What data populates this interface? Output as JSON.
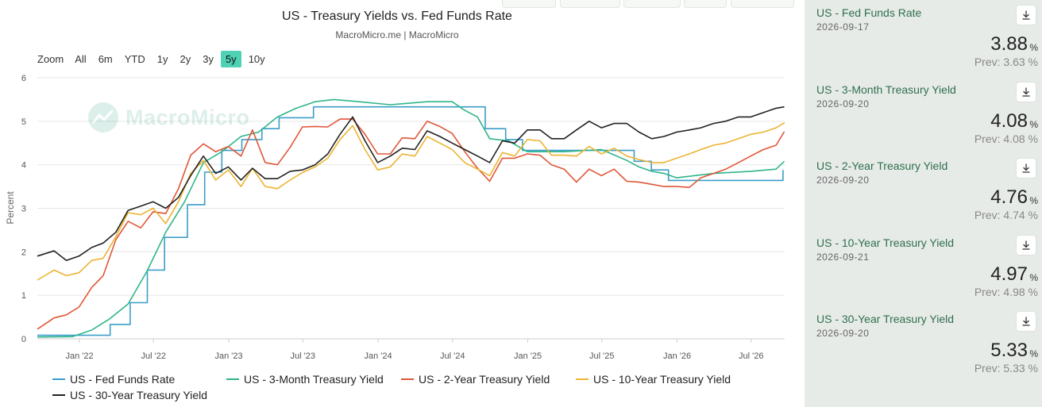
{
  "chart_data": {
    "type": "line",
    "title": "US - Treasury Yields vs. Fed Funds Rate",
    "subtitle": "MacroMicro.me | MacroMicro",
    "ylabel": "Percent",
    "xlabel": "",
    "ylim": [
      0,
      6
    ],
    "yticks": [
      0,
      1,
      2,
      3,
      4,
      5,
      6
    ],
    "xlim": [
      "2021-09-20",
      "2026-09-21"
    ],
    "xticks": [
      {
        "date": "2022-01-01",
        "label": "Jan '22"
      },
      {
        "date": "2022-07-01",
        "label": "Jul '22"
      },
      {
        "date": "2023-01-01",
        "label": "Jan '23"
      },
      {
        "date": "2023-07-01",
        "label": "Jul '23"
      },
      {
        "date": "2024-01-01",
        "label": "Jan '24"
      },
      {
        "date": "2024-07-01",
        "label": "Jul '24"
      },
      {
        "date": "2025-01-01",
        "label": "Jan '25"
      },
      {
        "date": "2025-07-01",
        "label": "Jul '25"
      },
      {
        "date": "2026-01-01",
        "label": "Jan '26"
      },
      {
        "date": "2026-07-01",
        "label": "Jul '26"
      }
    ],
    "grid": true,
    "legend": "bottom",
    "series": [
      {
        "name": "US - Fed Funds Rate",
        "color": "#3a9ec9",
        "step": true,
        "points": [
          [
            "2021-09-20",
            0.08
          ],
          [
            "2022-03-17",
            0.33
          ],
          [
            "2022-05-05",
            0.83
          ],
          [
            "2022-06-16",
            1.58
          ],
          [
            "2022-07-28",
            2.33
          ],
          [
            "2022-09-22",
            3.08
          ],
          [
            "2022-11-03",
            3.83
          ],
          [
            "2022-12-15",
            4.33
          ],
          [
            "2023-02-02",
            4.58
          ],
          [
            "2023-03-23",
            4.83
          ],
          [
            "2023-05-04",
            5.08
          ],
          [
            "2023-07-27",
            5.33
          ],
          [
            "2024-09-19",
            4.83
          ],
          [
            "2024-11-08",
            4.58
          ],
          [
            "2024-12-19",
            4.33
          ],
          [
            "2025-09-18",
            4.08
          ],
          [
            "2025-10-30",
            3.88
          ],
          [
            "2025-12-11",
            3.64
          ],
          [
            "2026-09-15",
            3.64
          ],
          [
            "2026-09-17",
            3.88
          ]
        ]
      },
      {
        "name": "US - 3-Month Treasury Yield",
        "color": "#2fb58a",
        "points": [
          [
            "2021-09-20",
            0.04
          ],
          [
            "2021-12-15",
            0.05
          ],
          [
            "2022-01-31",
            0.2
          ],
          [
            "2022-03-15",
            0.45
          ],
          [
            "2022-04-30",
            0.8
          ],
          [
            "2022-06-15",
            1.55
          ],
          [
            "2022-07-31",
            2.45
          ],
          [
            "2022-09-15",
            3.15
          ],
          [
            "2022-10-31",
            4.05
          ],
          [
            "2022-12-15",
            4.3
          ],
          [
            "2023-01-31",
            4.65
          ],
          [
            "2023-03-15",
            4.75
          ],
          [
            "2023-04-30",
            5.1
          ],
          [
            "2023-06-15",
            5.3
          ],
          [
            "2023-07-31",
            5.45
          ],
          [
            "2023-09-15",
            5.5
          ],
          [
            "2023-11-15",
            5.45
          ],
          [
            "2024-01-31",
            5.38
          ],
          [
            "2024-04-30",
            5.45
          ],
          [
            "2024-06-30",
            5.45
          ],
          [
            "2024-07-31",
            5.25
          ],
          [
            "2024-08-31",
            5.1
          ],
          [
            "2024-09-30",
            4.6
          ],
          [
            "2024-11-15",
            4.55
          ],
          [
            "2024-12-31",
            4.3
          ],
          [
            "2025-03-31",
            4.3
          ],
          [
            "2025-06-30",
            4.35
          ],
          [
            "2025-08-31",
            4.1
          ],
          [
            "2025-09-30",
            3.95
          ],
          [
            "2025-10-31",
            3.85
          ],
          [
            "2025-11-30",
            3.8
          ],
          [
            "2025-12-31",
            3.7
          ],
          [
            "2026-03-31",
            3.8
          ],
          [
            "2026-06-30",
            3.85
          ],
          [
            "2026-08-31",
            3.9
          ],
          [
            "2026-09-20",
            4.08
          ]
        ]
      },
      {
        "name": "US - 2-Year Treasury Yield",
        "color": "#e05638",
        "points": [
          [
            "2021-09-20",
            0.22
          ],
          [
            "2021-10-31",
            0.48
          ],
          [
            "2021-11-30",
            0.55
          ],
          [
            "2021-12-31",
            0.73
          ],
          [
            "2022-01-31",
            1.18
          ],
          [
            "2022-02-28",
            1.45
          ],
          [
            "2022-03-31",
            2.28
          ],
          [
            "2022-04-30",
            2.7
          ],
          [
            "2022-05-31",
            2.55
          ],
          [
            "2022-06-30",
            2.92
          ],
          [
            "2022-07-31",
            2.88
          ],
          [
            "2022-08-31",
            3.45
          ],
          [
            "2022-09-30",
            4.22
          ],
          [
            "2022-10-31",
            4.48
          ],
          [
            "2022-11-30",
            4.3
          ],
          [
            "2022-12-31",
            4.42
          ],
          [
            "2023-01-31",
            4.2
          ],
          [
            "2023-02-28",
            4.8
          ],
          [
            "2023-03-31",
            4.05
          ],
          [
            "2023-04-30",
            4.0
          ],
          [
            "2023-05-31",
            4.4
          ],
          [
            "2023-06-30",
            4.87
          ],
          [
            "2023-07-31",
            4.88
          ],
          [
            "2023-08-31",
            4.87
          ],
          [
            "2023-09-30",
            5.05
          ],
          [
            "2023-10-31",
            5.05
          ],
          [
            "2023-11-30",
            4.7
          ],
          [
            "2023-12-31",
            4.25
          ],
          [
            "2024-01-31",
            4.25
          ],
          [
            "2024-02-29",
            4.62
          ],
          [
            "2024-03-31",
            4.6
          ],
          [
            "2024-04-30",
            5.0
          ],
          [
            "2024-05-31",
            4.88
          ],
          [
            "2024-06-30",
            4.72
          ],
          [
            "2024-07-31",
            4.3
          ],
          [
            "2024-08-31",
            3.92
          ],
          [
            "2024-09-30",
            3.62
          ],
          [
            "2024-10-31",
            4.15
          ],
          [
            "2024-11-30",
            4.15
          ],
          [
            "2024-12-31",
            4.25
          ],
          [
            "2025-01-31",
            4.22
          ],
          [
            "2025-02-28",
            4.0
          ],
          [
            "2025-03-31",
            3.9
          ],
          [
            "2025-04-30",
            3.6
          ],
          [
            "2025-05-31",
            3.9
          ],
          [
            "2025-06-30",
            3.75
          ],
          [
            "2025-07-31",
            3.9
          ],
          [
            "2025-08-31",
            3.62
          ],
          [
            "2025-09-30",
            3.6
          ],
          [
            "2025-10-31",
            3.55
          ],
          [
            "2025-11-30",
            3.5
          ],
          [
            "2025-12-31",
            3.5
          ],
          [
            "2026-01-31",
            3.48
          ],
          [
            "2026-02-28",
            3.7
          ],
          [
            "2026-03-31",
            3.8
          ],
          [
            "2026-04-30",
            3.9
          ],
          [
            "2026-05-31",
            4.05
          ],
          [
            "2026-06-30",
            4.2
          ],
          [
            "2026-07-31",
            4.35
          ],
          [
            "2026-08-31",
            4.45
          ],
          [
            "2026-09-20",
            4.76
          ]
        ]
      },
      {
        "name": "US - 10-Year Treasury Yield",
        "color": "#ecb431",
        "points": [
          [
            "2021-09-20",
            1.35
          ],
          [
            "2021-10-31",
            1.58
          ],
          [
            "2021-11-30",
            1.45
          ],
          [
            "2021-12-31",
            1.52
          ],
          [
            "2022-01-31",
            1.8
          ],
          [
            "2022-02-28",
            1.85
          ],
          [
            "2022-03-31",
            2.35
          ],
          [
            "2022-04-30",
            2.9
          ],
          [
            "2022-05-31",
            2.85
          ],
          [
            "2022-06-30",
            3.0
          ],
          [
            "2022-07-31",
            2.65
          ],
          [
            "2022-08-31",
            3.15
          ],
          [
            "2022-09-30",
            3.8
          ],
          [
            "2022-10-31",
            4.1
          ],
          [
            "2022-11-30",
            3.65
          ],
          [
            "2022-12-31",
            3.88
          ],
          [
            "2023-01-31",
            3.5
          ],
          [
            "2023-02-28",
            3.92
          ],
          [
            "2023-03-31",
            3.5
          ],
          [
            "2023-04-30",
            3.45
          ],
          [
            "2023-05-31",
            3.65
          ],
          [
            "2023-06-30",
            3.82
          ],
          [
            "2023-07-31",
            3.95
          ],
          [
            "2023-08-31",
            4.15
          ],
          [
            "2023-09-30",
            4.58
          ],
          [
            "2023-10-31",
            4.9
          ],
          [
            "2023-11-30",
            4.35
          ],
          [
            "2023-12-31",
            3.88
          ],
          [
            "2024-01-31",
            3.95
          ],
          [
            "2024-02-29",
            4.25
          ],
          [
            "2024-03-31",
            4.2
          ],
          [
            "2024-04-30",
            4.65
          ],
          [
            "2024-05-31",
            4.5
          ],
          [
            "2024-06-30",
            4.35
          ],
          [
            "2024-07-31",
            4.05
          ],
          [
            "2024-08-31",
            3.9
          ],
          [
            "2024-09-30",
            3.75
          ],
          [
            "2024-10-31",
            4.28
          ],
          [
            "2024-11-30",
            4.2
          ],
          [
            "2024-12-31",
            4.58
          ],
          [
            "2025-01-31",
            4.55
          ],
          [
            "2025-02-28",
            4.22
          ],
          [
            "2025-03-31",
            4.22
          ],
          [
            "2025-04-30",
            4.2
          ],
          [
            "2025-05-31",
            4.42
          ],
          [
            "2025-06-30",
            4.25
          ],
          [
            "2025-07-31",
            4.38
          ],
          [
            "2025-08-31",
            4.2
          ],
          [
            "2025-09-30",
            4.12
          ],
          [
            "2025-10-31",
            4.05
          ],
          [
            "2025-11-30",
            4.05
          ],
          [
            "2025-12-31",
            4.15
          ],
          [
            "2026-01-31",
            4.25
          ],
          [
            "2026-02-28",
            4.35
          ],
          [
            "2026-03-31",
            4.45
          ],
          [
            "2026-04-30",
            4.5
          ],
          [
            "2026-05-31",
            4.6
          ],
          [
            "2026-06-30",
            4.7
          ],
          [
            "2026-07-31",
            4.75
          ],
          [
            "2026-08-31",
            4.85
          ],
          [
            "2026-09-21",
            4.97
          ]
        ]
      },
      {
        "name": "US - 30-Year Treasury Yield",
        "color": "#222222",
        "points": [
          [
            "2021-09-20",
            1.9
          ],
          [
            "2021-10-31",
            2.02
          ],
          [
            "2021-11-30",
            1.8
          ],
          [
            "2021-12-31",
            1.9
          ],
          [
            "2022-01-31",
            2.1
          ],
          [
            "2022-02-28",
            2.2
          ],
          [
            "2022-03-31",
            2.45
          ],
          [
            "2022-04-30",
            2.95
          ],
          [
            "2022-05-31",
            3.05
          ],
          [
            "2022-06-30",
            3.15
          ],
          [
            "2022-07-31",
            3.0
          ],
          [
            "2022-08-31",
            3.25
          ],
          [
            "2022-09-30",
            3.75
          ],
          [
            "2022-10-31",
            4.2
          ],
          [
            "2022-11-30",
            3.8
          ],
          [
            "2022-12-31",
            3.95
          ],
          [
            "2023-01-31",
            3.65
          ],
          [
            "2023-02-28",
            3.92
          ],
          [
            "2023-03-31",
            3.68
          ],
          [
            "2023-04-30",
            3.68
          ],
          [
            "2023-05-31",
            3.85
          ],
          [
            "2023-06-30",
            3.88
          ],
          [
            "2023-07-31",
            4.0
          ],
          [
            "2023-08-31",
            4.25
          ],
          [
            "2023-09-30",
            4.7
          ],
          [
            "2023-10-31",
            5.1
          ],
          [
            "2023-11-30",
            4.55
          ],
          [
            "2023-12-31",
            4.05
          ],
          [
            "2024-01-31",
            4.2
          ],
          [
            "2024-02-29",
            4.38
          ],
          [
            "2024-03-31",
            4.35
          ],
          [
            "2024-04-30",
            4.78
          ],
          [
            "2024-05-31",
            4.65
          ],
          [
            "2024-06-30",
            4.5
          ],
          [
            "2024-07-31",
            4.35
          ],
          [
            "2024-08-31",
            4.2
          ],
          [
            "2024-09-30",
            4.05
          ],
          [
            "2024-10-31",
            4.55
          ],
          [
            "2024-11-30",
            4.5
          ],
          [
            "2024-12-31",
            4.8
          ],
          [
            "2025-01-31",
            4.8
          ],
          [
            "2025-02-28",
            4.6
          ],
          [
            "2025-03-31",
            4.6
          ],
          [
            "2025-04-30",
            4.8
          ],
          [
            "2025-05-31",
            5.0
          ],
          [
            "2025-06-30",
            4.85
          ],
          [
            "2025-07-31",
            4.95
          ],
          [
            "2025-08-31",
            4.95
          ],
          [
            "2025-09-30",
            4.75
          ],
          [
            "2025-10-31",
            4.6
          ],
          [
            "2025-11-30",
            4.65
          ],
          [
            "2025-12-31",
            4.75
          ],
          [
            "2026-01-31",
            4.8
          ],
          [
            "2026-02-28",
            4.85
          ],
          [
            "2026-03-31",
            4.95
          ],
          [
            "2026-04-30",
            5.0
          ],
          [
            "2026-05-31",
            5.1
          ],
          [
            "2026-06-30",
            5.1
          ],
          [
            "2026-07-31",
            5.2
          ],
          [
            "2026-08-31",
            5.3
          ],
          [
            "2026-09-20",
            5.33
          ]
        ]
      }
    ]
  },
  "zoom": {
    "label": "Zoom",
    "options": [
      "All",
      "6m",
      "YTD",
      "1y",
      "2y",
      "3y",
      "5y",
      "10y"
    ],
    "active": "5y"
  },
  "watermark": {
    "text": "MacroMicro"
  },
  "side_panel": {
    "items": [
      {
        "name": "US - Fed Funds Rate",
        "date": "2026-09-17",
        "value": "3.88",
        "unit": "%",
        "prev": "Prev: 3.63 %"
      },
      {
        "name": "US - 3-Month Treasury Yield",
        "date": "2026-09-20",
        "value": "4.08",
        "unit": "%",
        "prev": "Prev: 4.08 %"
      },
      {
        "name": "US - 2-Year Treasury Yield",
        "date": "2026-09-20",
        "value": "4.76",
        "unit": "%",
        "prev": "Prev: 4.74 %"
      },
      {
        "name": "US - 10-Year Treasury Yield",
        "date": "2026-09-21",
        "value": "4.97",
        "unit": "%",
        "prev": "Prev: 4.98 %"
      },
      {
        "name": "US - 30-Year Treasury Yield",
        "date": "2026-09-20",
        "value": "5.33",
        "unit": "%",
        "prev": "Prev: 5.33 %"
      }
    ],
    "download_icon": "download-icon"
  }
}
